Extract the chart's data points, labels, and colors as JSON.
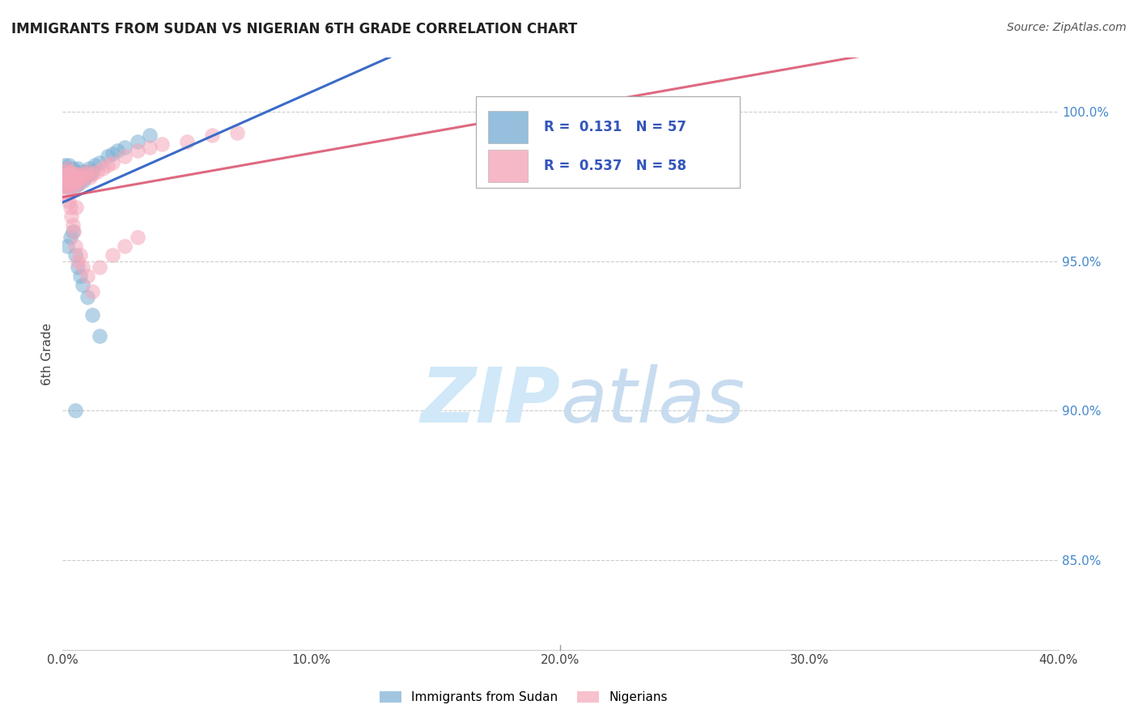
{
  "title": "IMMIGRANTS FROM SUDAN VS NIGERIAN 6TH GRADE CORRELATION CHART",
  "source": "Source: ZipAtlas.com",
  "ylabel": "6th Grade",
  "right_yticks": [
    85.0,
    90.0,
    95.0,
    100.0
  ],
  "right_ytick_labels": [
    "85.0%",
    "90.0%",
    "95.0%",
    "100.0%"
  ],
  "legend_label1": "Immigrants from Sudan",
  "legend_label2": "Nigerians",
  "R1": "0.131",
  "N1": "57",
  "R2": "0.537",
  "N2": "58",
  "blue_color": "#7BAFD4",
  "pink_color": "#F4A7B9",
  "blue_line_color": "#3B6BC8",
  "pink_line_color": "#D94F6B",
  "watermark_color": "#D0E8F8",
  "blue_x": [
    0.05,
    0.08,
    0.1,
    0.1,
    0.12,
    0.15,
    0.15,
    0.18,
    0.2,
    0.2,
    0.22,
    0.25,
    0.25,
    0.28,
    0.3,
    0.3,
    0.32,
    0.35,
    0.38,
    0.4,
    0.42,
    0.45,
    0.48,
    0.5,
    0.55,
    0.58,
    0.6,
    0.65,
    0.7,
    0.75,
    0.8,
    0.85,
    0.9,
    0.95,
    1.0,
    1.05,
    1.1,
    1.2,
    1.3,
    1.5,
    1.8,
    2.0,
    2.2,
    2.5,
    3.0,
    3.5,
    0.5,
    0.6,
    0.7,
    0.8,
    1.0,
    1.2,
    1.5,
    0.4,
    0.3,
    0.2,
    0.5
  ],
  "blue_y": [
    97.8,
    98.2,
    97.5,
    98.0,
    97.9,
    98.1,
    97.6,
    97.8,
    97.5,
    98.0,
    97.7,
    97.9,
    98.2,
    97.6,
    97.8,
    98.0,
    97.5,
    97.7,
    97.9,
    98.1,
    97.6,
    97.8,
    98.0,
    97.5,
    97.7,
    97.9,
    98.1,
    97.6,
    97.8,
    97.9,
    98.0,
    97.7,
    97.8,
    97.9,
    98.0,
    98.1,
    97.9,
    98.0,
    98.2,
    98.3,
    98.5,
    98.6,
    98.7,
    98.8,
    99.0,
    99.2,
    95.2,
    94.8,
    94.5,
    94.2,
    93.8,
    93.2,
    92.5,
    96.0,
    95.8,
    95.5,
    90.0
  ],
  "pink_x": [
    0.05,
    0.08,
    0.1,
    0.12,
    0.15,
    0.18,
    0.2,
    0.22,
    0.25,
    0.28,
    0.3,
    0.32,
    0.35,
    0.38,
    0.4,
    0.42,
    0.45,
    0.48,
    0.5,
    0.55,
    0.6,
    0.65,
    0.7,
    0.75,
    0.8,
    0.9,
    1.0,
    1.1,
    1.2,
    1.4,
    1.6,
    1.8,
    2.0,
    2.5,
    3.0,
    3.5,
    4.0,
    5.0,
    6.0,
    7.0,
    0.3,
    0.4,
    0.5,
    0.6,
    0.7,
    0.8,
    1.0,
    1.2,
    1.5,
    2.0,
    2.5,
    3.0,
    0.25,
    0.35,
    0.45,
    0.55,
    25.0,
    0.2
  ],
  "pink_y": [
    97.5,
    97.8,
    98.0,
    97.6,
    97.9,
    97.7,
    98.1,
    97.5,
    97.8,
    97.6,
    97.9,
    98.0,
    97.7,
    97.8,
    97.5,
    97.9,
    97.6,
    97.8,
    97.9,
    97.7,
    97.8,
    97.6,
    97.9,
    97.7,
    97.8,
    97.9,
    98.0,
    97.8,
    97.9,
    98.0,
    98.1,
    98.2,
    98.3,
    98.5,
    98.7,
    98.8,
    98.9,
    99.0,
    99.2,
    99.3,
    96.8,
    96.2,
    95.5,
    95.0,
    95.2,
    94.8,
    94.5,
    94.0,
    94.8,
    95.2,
    95.5,
    95.8,
    97.0,
    96.5,
    96.0,
    96.8,
    100.2,
    97.2
  ]
}
